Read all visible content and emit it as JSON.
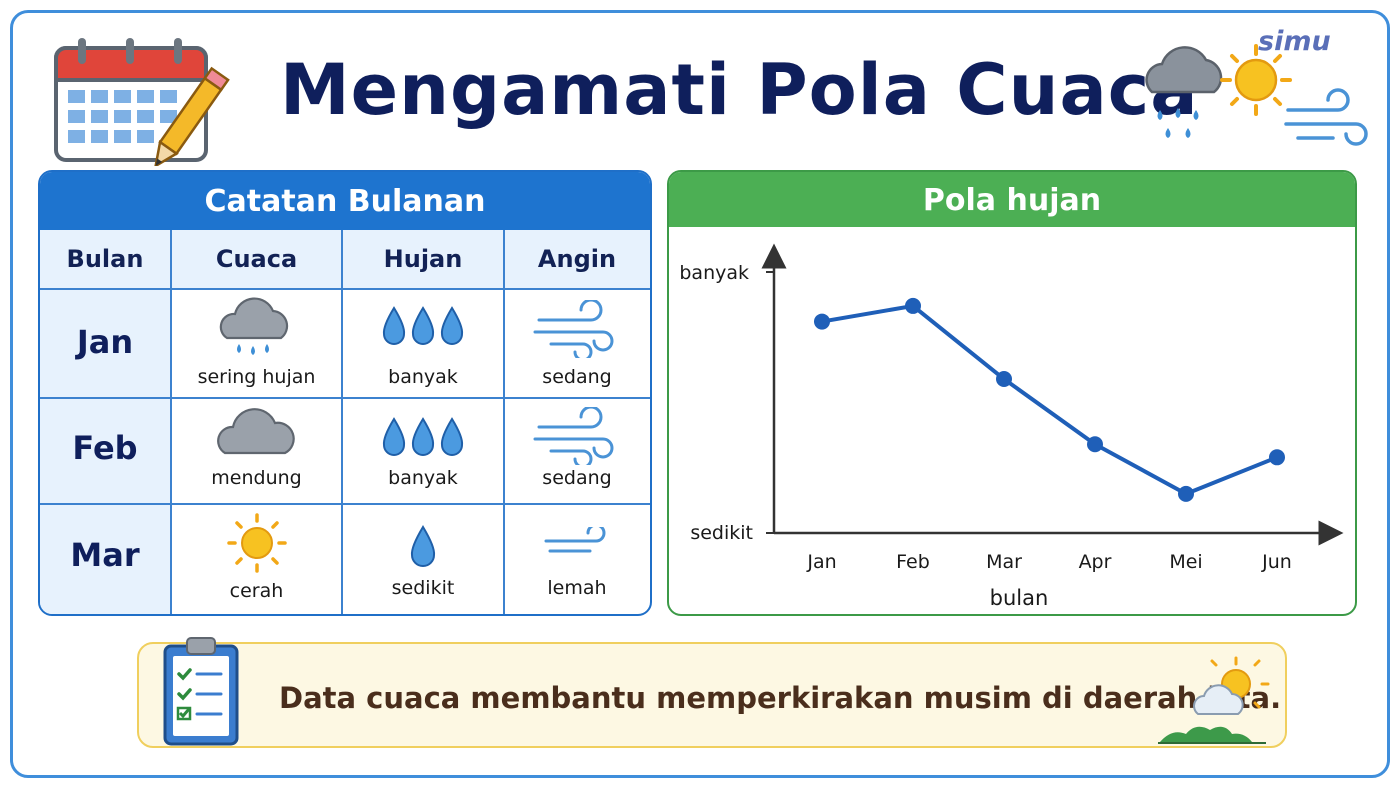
{
  "header": {
    "title": "Mengamati Pola Cuaca",
    "brand": "simu",
    "left_icon": "calendar-pencil-icon",
    "right_icons": [
      "rain-cloud-icon",
      "sun-icon",
      "wind-icon"
    ]
  },
  "table": {
    "title": "Catatan Bulanan",
    "columns": [
      "Bulan",
      "Cuaca",
      "Hujan",
      "Angin"
    ],
    "rows": [
      {
        "month": "Jan",
        "weather": "sering hujan",
        "weather_icon": "rain-cloud-icon",
        "rain": "banyak",
        "rain_icon": "three-drops-icon",
        "wind": "sedang",
        "wind_icon": "wind-medium-icon"
      },
      {
        "month": "Feb",
        "weather": "mendung",
        "weather_icon": "cloud-icon",
        "rain": "banyak",
        "rain_icon": "three-drops-icon",
        "wind": "sedang",
        "wind_icon": "wind-medium-icon"
      },
      {
        "month": "Mar",
        "weather": "cerah",
        "weather_icon": "sun-icon",
        "rain": "sedikit",
        "rain_icon": "one-drop-icon",
        "wind": "lemah",
        "wind_icon": "wind-weak-icon"
      }
    ],
    "colors": {
      "header": "#1e74cf",
      "border": "#3c82cf",
      "header_row_bg": "#e7f2fd"
    }
  },
  "chart_data": {
    "type": "line",
    "title": "Pola hujan",
    "categories": [
      "Jan",
      "Feb",
      "Mar",
      "Apr",
      "Mei",
      "Jun"
    ],
    "values": [
      0.81,
      0.87,
      0.59,
      0.34,
      0.15,
      0.29
    ],
    "ylim": [
      0,
      1
    ],
    "ylabel_top": "banyak",
    "ylabel_bottom": "sedikit",
    "xlabel": "bulan",
    "grid": false,
    "line_color": "#1f5fb8",
    "header_color": "#4caf54"
  },
  "note": {
    "text": "Data cuaca membantu memperkirakan musim di daerah kita.",
    "left_icon": "clipboard-checklist-icon",
    "right_icon": "sun-cloud-icon"
  }
}
